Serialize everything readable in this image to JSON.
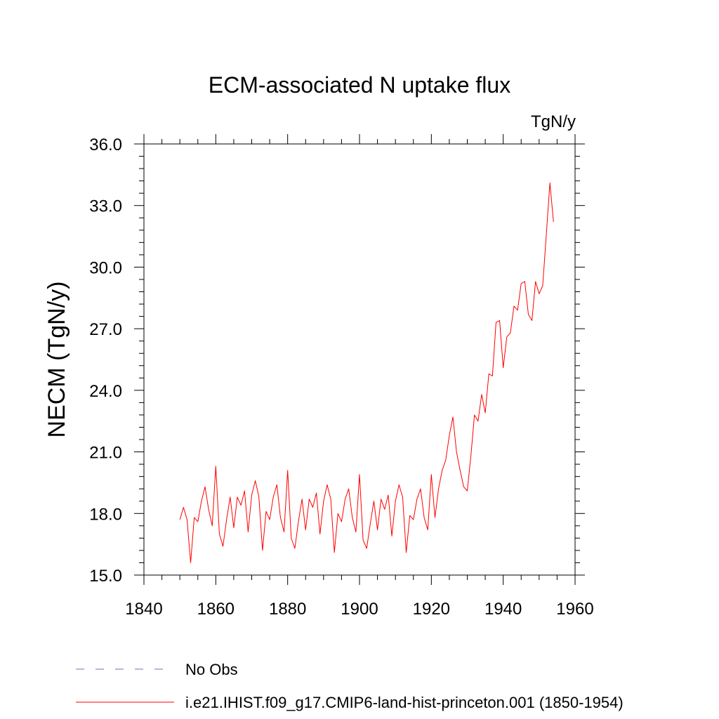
{
  "chart_data": {
    "type": "line",
    "title": "ECM-associated N uptake flux",
    "units_label": "TgN/y",
    "ylabel": "NECM  (TgN/y)",
    "xlabel": "",
    "xlim": [
      1840,
      1960
    ],
    "ylim": [
      15.0,
      36.0
    ],
    "x_ticks": [
      "1840",
      "1860",
      "1880",
      "1900",
      "1920",
      "1940",
      "1960"
    ],
    "y_ticks": [
      "15.0",
      "18.0",
      "21.0",
      "24.0",
      "27.0",
      "30.0",
      "33.0",
      "36.0"
    ],
    "grid": false,
    "legend_position": "bottom",
    "legend": [
      {
        "label": "No Obs",
        "color": "#7b68b0",
        "style": "dashed"
      },
      {
        "label": "i.e21.IHIST.f09_g17.CMIP6-land-hist-princeton.001 (1850-1954)",
        "color": "#ff0000",
        "style": "solid"
      }
    ],
    "series": [
      {
        "name": "i.e21.IHIST.f09_g17.CMIP6-land-hist-princeton.001 (1850-1954)",
        "color": "#ff0000",
        "x": [
          1850,
          1851,
          1852,
          1853,
          1854,
          1855,
          1856,
          1857,
          1858,
          1859,
          1860,
          1861,
          1862,
          1863,
          1864,
          1865,
          1866,
          1867,
          1868,
          1869,
          1870,
          1871,
          1872,
          1873,
          1874,
          1875,
          1876,
          1877,
          1878,
          1879,
          1880,
          1881,
          1882,
          1883,
          1884,
          1885,
          1886,
          1887,
          1888,
          1889,
          1890,
          1891,
          1892,
          1893,
          1894,
          1895,
          1896,
          1897,
          1898,
          1899,
          1900,
          1901,
          1902,
          1903,
          1904,
          1905,
          1906,
          1907,
          1908,
          1909,
          1910,
          1911,
          1912,
          1913,
          1914,
          1915,
          1916,
          1917,
          1918,
          1919,
          1920,
          1921,
          1922,
          1923,
          1924,
          1925,
          1926,
          1927,
          1928,
          1929,
          1930,
          1931,
          1932,
          1933,
          1934,
          1935,
          1936,
          1937,
          1938,
          1939,
          1940,
          1941,
          1942,
          1943,
          1944,
          1945,
          1946,
          1947,
          1948,
          1949,
          1950,
          1951,
          1952,
          1953,
          1954
        ],
        "y": [
          17.7,
          18.3,
          17.7,
          15.6,
          17.8,
          17.6,
          18.6,
          19.3,
          18.2,
          17.4,
          20.3,
          17.0,
          16.4,
          17.7,
          18.8,
          17.3,
          18.8,
          18.4,
          19.1,
          17.1,
          18.9,
          19.6,
          18.8,
          16.2,
          18.1,
          17.7,
          18.8,
          19.4,
          17.8,
          17.1,
          20.1,
          16.8,
          16.3,
          17.6,
          18.7,
          17.2,
          18.7,
          18.3,
          19.0,
          17.0,
          18.6,
          19.4,
          18.7,
          16.1,
          18.0,
          17.6,
          18.7,
          19.2,
          17.8,
          17.1,
          19.9,
          16.7,
          16.3,
          17.5,
          18.6,
          17.2,
          18.7,
          18.2,
          18.9,
          16.9,
          18.6,
          19.4,
          18.8,
          16.1,
          17.9,
          17.7,
          18.7,
          19.2,
          17.8,
          17.2,
          19.9,
          17.8,
          19.2,
          20.1,
          20.6,
          21.8,
          22.7,
          21.0,
          20.1,
          19.3,
          19.1,
          20.8,
          22.8,
          22.5,
          23.8,
          22.9,
          24.8,
          24.7,
          27.3,
          27.4,
          25.1,
          26.6,
          26.8,
          28.1,
          27.9,
          29.2,
          29.3,
          27.7,
          27.4,
          29.3,
          28.7,
          29.1,
          31.6,
          34.1,
          32.2
        ]
      }
    ]
  }
}
